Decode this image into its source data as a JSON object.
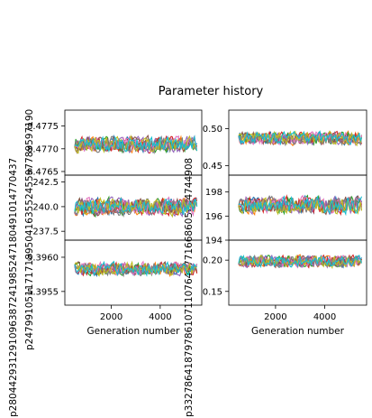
{
  "figure": {
    "suptitle": "Parameter history",
    "series_colors": [
      "#1f77b4",
      "#ff7f0e",
      "#2ca02c",
      "#d62728",
      "#9467bd",
      "#8c564b",
      "#e377c2",
      "#7f7f7f",
      "#bcbd22",
      "#17becf"
    ]
  },
  "chart_data": [
    {
      "type": "line",
      "panel": "left-top",
      "ylabel": "p280442931291096387241985247180491014770437",
      "ytick_labels": [
        "8.4765",
        "8.4770",
        "8.4775"
      ],
      "yticks": [
        8.4765,
        8.477,
        8.4775
      ],
      "ylim": [
        8.47642,
        8.47785
      ],
      "xlim": [
        100,
        5700
      ],
      "xticks": [],
      "xtick_labels": [],
      "xlabel": "",
      "series_count": 10,
      "center": 8.4771,
      "spread": 0.00022,
      "grid": false
    },
    {
      "type": "line",
      "panel": "right-top",
      "ylabel": "p332786418797861071107646771668605684744908",
      "ytick_labels": [
        "0.45",
        "0.50"
      ],
      "yticks": [
        0.45,
        0.5
      ],
      "ylim": [
        0.437,
        0.525
      ],
      "xlim": [
        100,
        5700
      ],
      "xticks": [],
      "xtick_labels": [],
      "xlabel": "",
      "series_count": 10,
      "center": 0.487,
      "spread": 0.011,
      "grid": false
    },
    {
      "type": "line",
      "panel": "left-middle",
      "ylabel": "p247991051171718950416355245597789597190",
      "ytick_labels": [
        "237.5",
        "240.0",
        "242.5"
      ],
      "yticks": [
        237.5,
        240.0,
        242.5
      ],
      "ylim": [
        236.6,
        243.2
      ],
      "xlim": [
        100,
        5700
      ],
      "xticks": [],
      "xtick_labels": [],
      "xlabel": "",
      "series_count": 10,
      "center": 240.0,
      "spread": 1.1,
      "grid": false
    },
    {
      "type": "line",
      "panel": "right-middle",
      "ylabel": "",
      "ytick_labels": [
        "194",
        "196",
        "198"
      ],
      "yticks": [
        194,
        196,
        198
      ],
      "ylim": [
        194.0,
        199.4
      ],
      "xlim": [
        100,
        5700
      ],
      "xticks": [],
      "xtick_labels": [],
      "xlabel": "",
      "series_count": 10,
      "center": 196.9,
      "spread": 0.9,
      "grid": false
    },
    {
      "type": "line",
      "panel": "left-bottom",
      "ylabel": "",
      "ytick_labels": [
        "5.3955",
        "5.3960"
      ],
      "yticks": [
        5.3955,
        5.396
      ],
      "ylim": [
        5.3953,
        5.39625
      ],
      "xlim": [
        100,
        5700
      ],
      "xticks": [
        2000,
        4000
      ],
      "xtick_labels": [
        "2000",
        "4000"
      ],
      "xlabel": "Generation number",
      "series_count": 10,
      "center": 5.39583,
      "spread": 0.00012,
      "grid": false
    },
    {
      "type": "line",
      "panel": "right-bottom",
      "ylabel": "",
      "ytick_labels": [
        "0.15",
        "0.20"
      ],
      "yticks": [
        0.15,
        0.2
      ],
      "ylim": [
        0.128,
        0.232
      ],
      "xlim": [
        100,
        5700
      ],
      "xticks": [
        2000,
        4000
      ],
      "xtick_labels": [
        "2000",
        "4000"
      ],
      "xlabel": "Generation number",
      "series_count": 10,
      "center": 0.198,
      "spread": 0.012,
      "grid": false
    }
  ]
}
